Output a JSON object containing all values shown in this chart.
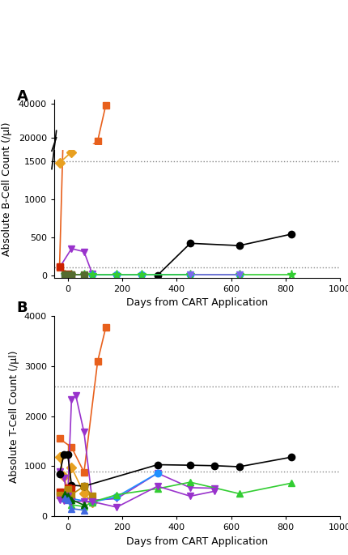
{
  "panel_A": {
    "ylabel": "Absolute B-Cell Count (/µl)",
    "xlabel": "Days from CART Application",
    "hlines": [
      1500,
      100
    ],
    "series": [
      {
        "color": "#E8601C",
        "marker": "s",
        "x": [
          -30,
          110,
          140
        ],
        "y": [
          100,
          18000,
          39000
        ]
      },
      {
        "color": "#E8A020",
        "marker": "D",
        "x": [
          -30,
          14
        ],
        "y": [
          1480,
          1620
        ]
      },
      {
        "color": "#9932CC",
        "marker": "v",
        "x": [
          -30,
          14,
          60,
          90
        ],
        "y": [
          100,
          350,
          310,
          20
        ]
      },
      {
        "color": "#000000",
        "marker": "o",
        "x": [
          330,
          450,
          630,
          820
        ],
        "y": [
          0,
          420,
          390,
          540
        ]
      },
      {
        "color": "#1E90FF",
        "marker": "o",
        "x": [
          -10,
          14,
          90,
          180,
          270,
          450,
          630
        ],
        "y": [
          5,
          5,
          5,
          5,
          5,
          10,
          5
        ]
      },
      {
        "color": "#32CD32",
        "marker": "*",
        "x": [
          -10,
          14,
          60,
          90,
          180,
          270,
          450,
          630,
          820
        ],
        "y": [
          5,
          5,
          5,
          5,
          5,
          5,
          5,
          5,
          5
        ]
      },
      {
        "color": "#CC2200",
        "marker": "s",
        "x": [
          -30,
          0,
          14
        ],
        "y": [
          110,
          15,
          5
        ]
      },
      {
        "color": "#7B68EE",
        "marker": "v",
        "x": [
          450,
          630
        ],
        "y": [
          5,
          5
        ]
      },
      {
        "color": "#556B2F",
        "marker": "s",
        "x": [
          -10,
          0,
          14,
          60
        ],
        "y": [
          5,
          5,
          5,
          5
        ]
      }
    ]
  },
  "panel_B": {
    "ylabel": "Absolute T-Cell Count (/µl)",
    "xlabel": "Days from CART Application",
    "ylim": [
      0,
      4000
    ],
    "hlines": [
      2600,
      900
    ],
    "series": [
      {
        "color": "#E8601C",
        "marker": "s",
        "x": [
          -30,
          14,
          60,
          110,
          140
        ],
        "y": [
          1550,
          1380,
          880,
          3100,
          3780
        ]
      },
      {
        "color": "#E8A020",
        "marker": "D",
        "x": [
          -30,
          -14,
          0,
          14,
          60,
          90
        ],
        "y": [
          1180,
          800,
          530,
          980,
          450,
          280
        ]
      },
      {
        "color": "#9932CC",
        "marker": "v",
        "x": [
          -30,
          -14,
          0,
          14,
          30,
          60,
          90,
          180,
          330,
          450,
          540
        ],
        "y": [
          900,
          770,
          380,
          2330,
          2410,
          1680,
          320,
          350,
          860,
          570,
          560
        ]
      },
      {
        "color": "#000000",
        "marker": "o",
        "x": [
          -30,
          -14,
          0,
          14,
          60,
          330,
          450,
          540,
          630,
          820
        ],
        "y": [
          850,
          1230,
          1240,
          620,
          600,
          1030,
          1020,
          1010,
          990,
          1180
        ]
      },
      {
        "color": "#1E90FF",
        "marker": "o",
        "x": [
          -10,
          0,
          14,
          90,
          180,
          330
        ],
        "y": [
          430,
          530,
          350,
          280,
          390,
          860
        ]
      },
      {
        "color": "#32CD32",
        "marker": "^",
        "x": [
          -10,
          0,
          14,
          60,
          90,
          180,
          330,
          450,
          630,
          820
        ],
        "y": [
          480,
          530,
          230,
          190,
          280,
          430,
          550,
          680,
          450,
          660
        ]
      },
      {
        "color": "#CC2200",
        "marker": "s",
        "x": [
          -30,
          -14,
          0,
          14
        ],
        "y": [
          490,
          410,
          570,
          550
        ]
      },
      {
        "color": "#B8860B",
        "marker": "s",
        "x": [
          -30,
          -14,
          0,
          14,
          60,
          90
        ],
        "y": [
          420,
          380,
          540,
          430,
          600,
          410
        ]
      },
      {
        "color": "#9932CC",
        "marker": "v",
        "x": [
          -30,
          -14,
          0,
          14,
          60,
          90,
          180,
          330,
          450,
          540
        ],
        "y": [
          320,
          310,
          410,
          290,
          300,
          290,
          180,
          600,
          400,
          500
        ]
      },
      {
        "color": "#006400",
        "marker": "^",
        "x": [
          -10,
          0,
          14,
          60
        ],
        "y": [
          440,
          400,
          330,
          220
        ]
      },
      {
        "color": "#4169E1",
        "marker": "^",
        "x": [
          -10,
          0,
          14,
          60
        ],
        "y": [
          350,
          320,
          150,
          120
        ]
      }
    ]
  }
}
